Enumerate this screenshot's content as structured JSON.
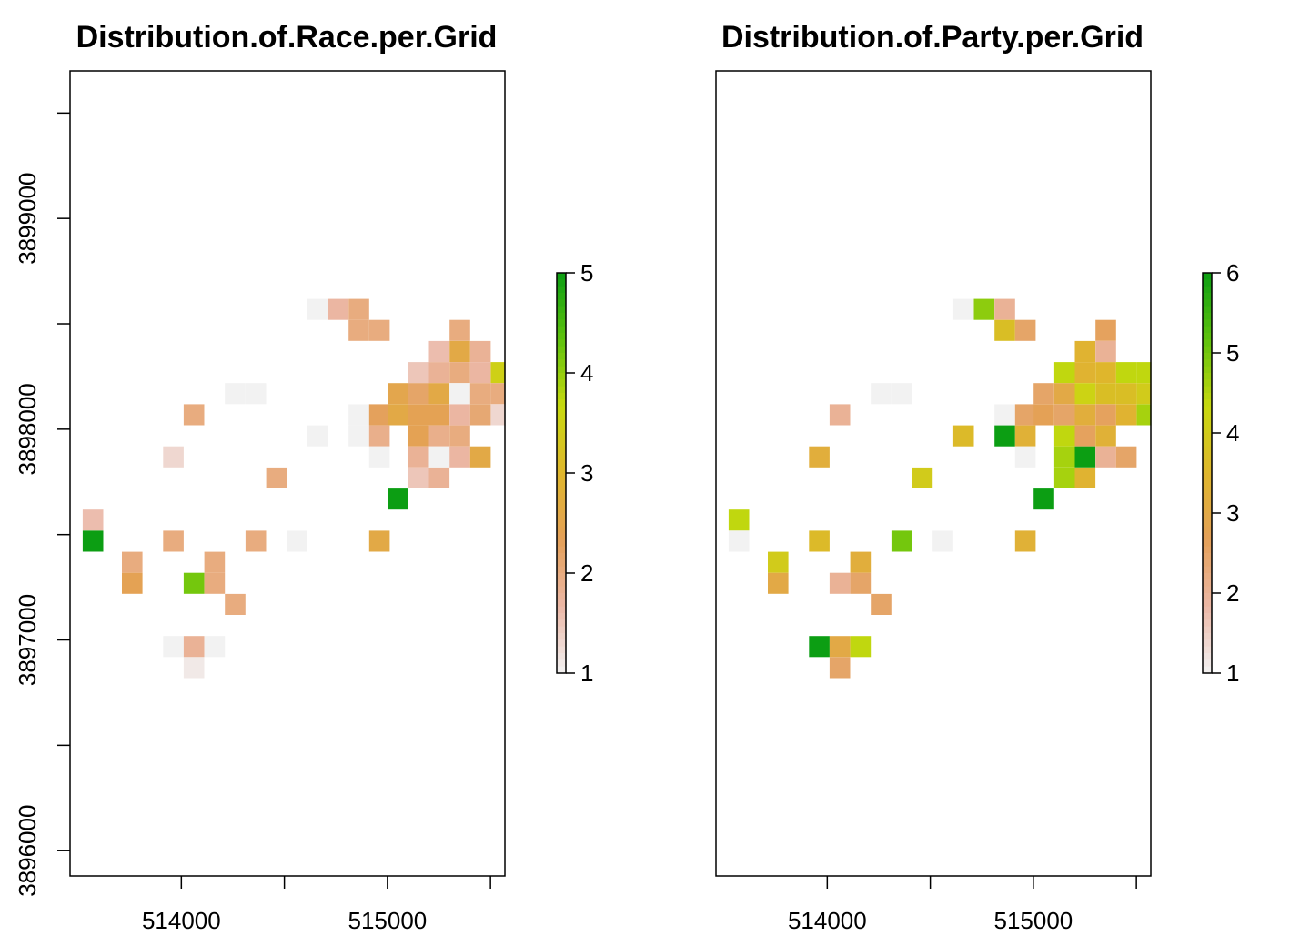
{
  "chart_data": [
    {
      "type": "heatmap",
      "title": "Distribution.of.Race.per.Grid",
      "xlabel": "",
      "ylabel": "",
      "xlim": [
        513460,
        515570
      ],
      "ylim": [
        3895880,
        3899700
      ],
      "x_ticks": [
        514000,
        514500,
        515000,
        515500
      ],
      "x_tick_labels": [
        "514000",
        "515000"
      ],
      "x_tick_labeled_values": [
        514000,
        515000
      ],
      "y_ticks": [
        3896000,
        3896500,
        3897000,
        3897500,
        3898000,
        3898500,
        3899000,
        3899500
      ],
      "y_tick_labels": [
        "3896000",
        "3897000",
        "3898000",
        "3899000"
      ],
      "y_tick_labeled_values": [
        3896000,
        3897000,
        3898000,
        3899000
      ],
      "y_axis_shown": true,
      "cell_size": [
        97,
        97
      ],
      "color_scale": {
        "min": 1,
        "max": 5,
        "ticks": [
          "1",
          "2",
          "3",
          "4",
          "5"
        ],
        "palette": [
          "#f2f2f2",
          "#ebb7a6",
          "#e4a058",
          "#dfb62c",
          "#c8d90f",
          "#5fc20d",
          "#0c9e13"
        ]
      },
      "cells": [
        [
          514660,
          3898570,
          1.0
        ],
        [
          514760,
          3898570,
          1.7
        ],
        [
          514860,
          3898570,
          2.0
        ],
        [
          514860,
          3898470,
          2.0
        ],
        [
          514960,
          3898470,
          2.0
        ],
        [
          515350,
          3898470,
          2.0
        ],
        [
          515250,
          3898370,
          1.6
        ],
        [
          515350,
          3898370,
          2.6
        ],
        [
          515450,
          3898370,
          1.8
        ],
        [
          515150,
          3898270,
          1.5
        ],
        [
          515250,
          3898270,
          1.8
        ],
        [
          515350,
          3898270,
          2.0
        ],
        [
          515450,
          3898270,
          1.7
        ],
        [
          515550,
          3898270,
          3.5
        ],
        [
          514260,
          3898170,
          1.0
        ],
        [
          514360,
          3898170,
          1.0
        ],
        [
          515050,
          3898170,
          2.5
        ],
        [
          515150,
          3898170,
          2.2
        ],
        [
          515250,
          3898170,
          2.6
        ],
        [
          515350,
          3898170,
          1.0
        ],
        [
          515450,
          3898170,
          2.0
        ],
        [
          515550,
          3898170,
          2.0
        ],
        [
          514060,
          3898070,
          2.0
        ],
        [
          514860,
          3898070,
          1.0
        ],
        [
          514960,
          3898070,
          2.3
        ],
        [
          515050,
          3898070,
          2.6
        ],
        [
          515150,
          3898070,
          2.4
        ],
        [
          515250,
          3898070,
          2.4
        ],
        [
          515350,
          3898070,
          1.7
        ],
        [
          515450,
          3898070,
          2.1
        ],
        [
          515550,
          3898070,
          1.3
        ],
        [
          514660,
          3897970,
          1.0
        ],
        [
          514860,
          3897970,
          1.0
        ],
        [
          514960,
          3897970,
          1.9
        ],
        [
          515150,
          3897970,
          2.4
        ],
        [
          515250,
          3897970,
          1.9
        ],
        [
          515350,
          3897970,
          2.0
        ],
        [
          513960,
          3897870,
          1.3
        ],
        [
          514960,
          3897870,
          1.0
        ],
        [
          515150,
          3897870,
          1.8
        ],
        [
          515250,
          3897870,
          1.0
        ],
        [
          515350,
          3897870,
          1.7
        ],
        [
          515450,
          3897870,
          2.6
        ],
        [
          514460,
          3897770,
          2.0
        ],
        [
          515150,
          3897770,
          1.5
        ],
        [
          515250,
          3897770,
          1.8
        ],
        [
          515050,
          3897670,
          5.0
        ],
        [
          513570,
          3897570,
          1.6
        ],
        [
          513570,
          3897470,
          5.0
        ],
        [
          513960,
          3897470,
          2.0
        ],
        [
          514360,
          3897470,
          2.0
        ],
        [
          514560,
          3897470,
          1.0
        ],
        [
          514960,
          3897470,
          2.6
        ],
        [
          513760,
          3897370,
          2.0
        ],
        [
          514160,
          3897370,
          2.0
        ],
        [
          513760,
          3897270,
          2.4
        ],
        [
          514060,
          3897270,
          4.2
        ],
        [
          514160,
          3897270,
          2.0
        ],
        [
          514260,
          3897170,
          2.0
        ],
        [
          513960,
          3896970,
          1.0
        ],
        [
          514060,
          3896970,
          1.8
        ],
        [
          514160,
          3896970,
          1.0
        ],
        [
          514060,
          3896870,
          1.1
        ]
      ]
    },
    {
      "type": "heatmap",
      "title": "Distribution.of.Party.per.Grid",
      "xlabel": "",
      "ylabel": "",
      "xlim": [
        513460,
        515570
      ],
      "ylim": [
        3895880,
        3899700
      ],
      "x_ticks": [
        514000,
        514500,
        515000,
        515500
      ],
      "x_tick_labels": [
        "514000",
        "515000"
      ],
      "x_tick_labeled_values": [
        514000,
        515000
      ],
      "y_ticks": [],
      "y_tick_labels": [],
      "y_tick_labeled_values": [],
      "y_axis_shown": false,
      "cell_size": [
        97,
        97
      ],
      "color_scale": {
        "min": 1,
        "max": 6,
        "ticks": [
          "1",
          "2",
          "3",
          "4",
          "5",
          "6"
        ],
        "palette": [
          "#f2f2f2",
          "#ebb7a6",
          "#e4a058",
          "#dfb62c",
          "#c8d90f",
          "#5fc20d",
          "#0c9e13"
        ]
      },
      "cells": [
        [
          514660,
          3898570,
          1.0
        ],
        [
          514760,
          3898570,
          4.8
        ],
        [
          514860,
          3898570,
          2.0
        ],
        [
          514860,
          3898470,
          3.7
        ],
        [
          514960,
          3898470,
          2.5
        ],
        [
          515350,
          3898470,
          2.6
        ],
        [
          515250,
          3898370,
          3.4
        ],
        [
          515350,
          3898370,
          2.0
        ],
        [
          515150,
          3898270,
          4.4
        ],
        [
          515250,
          3898270,
          3.4
        ],
        [
          515350,
          3898270,
          3.5
        ],
        [
          515450,
          3898270,
          4.4
        ],
        [
          515550,
          3898270,
          4.4
        ],
        [
          514260,
          3898170,
          1.0
        ],
        [
          514360,
          3898170,
          1.0
        ],
        [
          515050,
          3898170,
          2.5
        ],
        [
          515150,
          3898170,
          3.0
        ],
        [
          515250,
          3898170,
          4.2
        ],
        [
          515350,
          3898170,
          3.7
        ],
        [
          515450,
          3898170,
          3.7
        ],
        [
          515550,
          3898170,
          4.0
        ],
        [
          514060,
          3898070,
          2.0
        ],
        [
          514860,
          3898070,
          1.0
        ],
        [
          514960,
          3898070,
          2.5
        ],
        [
          515050,
          3898070,
          2.7
        ],
        [
          515150,
          3898070,
          2.5
        ],
        [
          515250,
          3898070,
          3.2
        ],
        [
          515350,
          3898070,
          2.6
        ],
        [
          515450,
          3898070,
          3.4
        ],
        [
          515550,
          3898070,
          4.6
        ],
        [
          514660,
          3897970,
          3.6
        ],
        [
          514860,
          3897970,
          6.0
        ],
        [
          514960,
          3897970,
          3.3
        ],
        [
          515150,
          3897970,
          4.4
        ],
        [
          515250,
          3897970,
          2.6
        ],
        [
          515350,
          3897970,
          3.3
        ],
        [
          513960,
          3897870,
          3.2
        ],
        [
          514960,
          3897870,
          1.0
        ],
        [
          515150,
          3897870,
          4.6
        ],
        [
          515250,
          3897870,
          6.0
        ],
        [
          515350,
          3897870,
          2.0
        ],
        [
          515450,
          3897870,
          2.5
        ],
        [
          514460,
          3897770,
          4.0
        ],
        [
          515150,
          3897770,
          4.6
        ],
        [
          515250,
          3897770,
          3.4
        ],
        [
          515050,
          3897670,
          6.0
        ],
        [
          513570,
          3897570,
          4.4
        ],
        [
          513570,
          3897470,
          1.0
        ],
        [
          513960,
          3897470,
          3.6
        ],
        [
          514360,
          3897470,
          5.0
        ],
        [
          514560,
          3897470,
          1.0
        ],
        [
          514960,
          3897470,
          3.3
        ],
        [
          513760,
          3897370,
          4.0
        ],
        [
          514160,
          3897370,
          3.2
        ],
        [
          513760,
          3897270,
          3.0
        ],
        [
          514060,
          3897270,
          2.0
        ],
        [
          514160,
          3897270,
          2.5
        ],
        [
          514260,
          3897170,
          2.5
        ],
        [
          513960,
          3896970,
          6.0
        ],
        [
          514060,
          3896970,
          3.0
        ],
        [
          514160,
          3896970,
          4.4
        ],
        [
          514060,
          3896870,
          2.5
        ]
      ]
    }
  ]
}
